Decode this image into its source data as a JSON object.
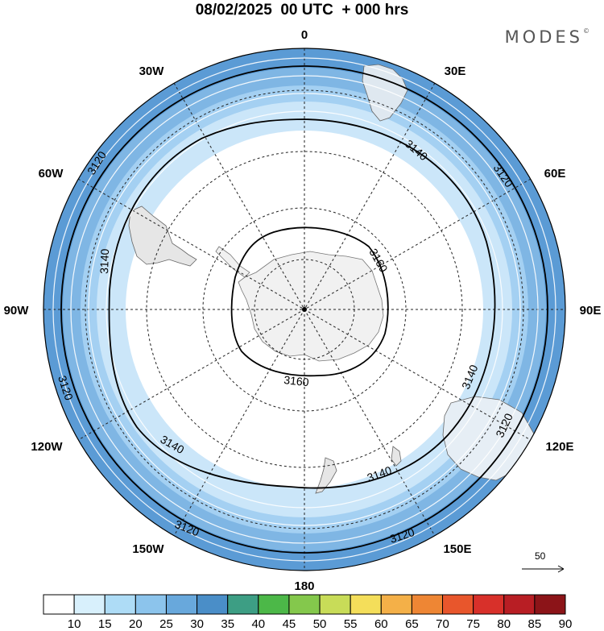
{
  "header": {
    "title": "08/02/2025  00 UTC  + 000 hrs",
    "brand": "MODES",
    "brand_mark": "©"
  },
  "map": {
    "projection": "south polar stereographic",
    "longitude_labels": {
      "top": "0",
      "top_left": "30W",
      "top_right": "30E",
      "upper_left": "60W",
      "upper_right": "60E",
      "left": "90W",
      "right": "90E",
      "lower_left": "120W",
      "lower_right": "120E",
      "bottom_left": "150W",
      "bottom_right": "150E",
      "bottom": "180"
    },
    "contour_labels": {
      "c3120_a": "3120",
      "c3120_b": "3120",
      "c3120_c": "3120",
      "c3120_d": "3120",
      "c3120_e": "3120",
      "c3140_a": "3140",
      "c3140_b": "3140",
      "c3140_c": "3140",
      "c3140_d": "3140",
      "c3140_e": "3140",
      "c3160_a": "3160",
      "c3160_b": "3160"
    },
    "reference_vector_label": "50",
    "colors": {
      "ocean_ring": "#5b9bd5",
      "continent": "#f0f0f0",
      "contour": "#000000"
    }
  },
  "colorbar": {
    "labels": [
      "10",
      "15",
      "20",
      "25",
      "30",
      "35",
      "40",
      "45",
      "50",
      "55",
      "60",
      "65",
      "70",
      "75",
      "80",
      "85",
      "90"
    ],
    "colors": [
      "#ffffff",
      "#d8f0fc",
      "#aedcf6",
      "#8cc4ec",
      "#68a8dc",
      "#4a8ec8",
      "#3d9e84",
      "#4cb848",
      "#84c84c",
      "#c8dc58",
      "#f4de5a",
      "#f4b048",
      "#ee8634",
      "#e8562c",
      "#d8302a",
      "#b81e24",
      "#8c1418"
    ]
  }
}
